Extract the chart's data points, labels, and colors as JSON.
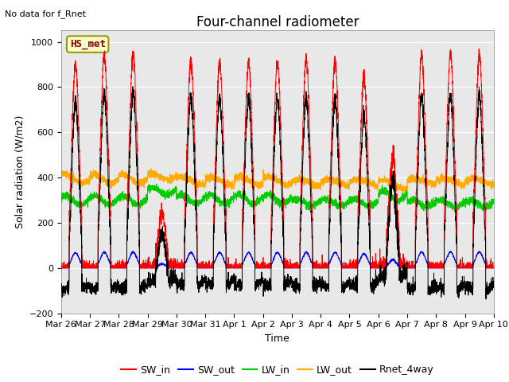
{
  "title": "Four-channel radiometer",
  "top_left_text": "No data for f_Rnet",
  "ylabel": "Solar radiation (W/m2)",
  "xlabel": "Time",
  "station_label": "HS_met",
  "ylim": [
    -200,
    1050
  ],
  "days": 15,
  "x_tick_labels": [
    "Mar 26",
    "Mar 27",
    "Mar 28",
    "Mar 29",
    "Mar 30",
    "Mar 31",
    "Apr 1",
    "Apr 2",
    "Apr 3",
    "Apr 4",
    "Apr 5",
    "Apr 6",
    "Apr 7",
    "Apr 8",
    "Apr 9",
    "Apr 10"
  ],
  "colors": {
    "SW_in": "#ff0000",
    "SW_out": "#0000ff",
    "LW_in": "#00cc00",
    "LW_out": "#ffaa00",
    "Rnet_4way": "#000000"
  },
  "plot_bg_color": "#e8e8e8",
  "fig_bg_color": "#ffffff",
  "title_fontsize": 12,
  "label_fontsize": 9,
  "tick_fontsize": 8,
  "day_peaks": [
    900,
    940,
    950,
    240,
    920,
    910,
    910,
    910,
    920,
    920,
    840,
    490,
    940,
    950,
    940
  ],
  "lw_in_base": 310,
  "lw_out_base": 390,
  "night_rnet": -100
}
